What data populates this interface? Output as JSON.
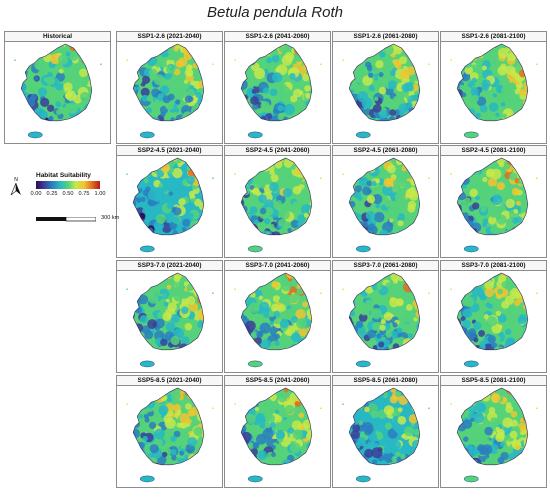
{
  "title": "Betula pendula Roth",
  "legend": {
    "title": "Habitat Suitability",
    "ticks": [
      "0.00",
      "0.25",
      "0.50",
      "0.75",
      "1.00"
    ],
    "scalebar_label": "300 km",
    "north_label": "N",
    "colors": [
      "#2d0a4e",
      "#3b3f9a",
      "#2a7fbf",
      "#28b8c4",
      "#55d27a",
      "#c6e94a",
      "#f0c530",
      "#e36f22",
      "#b4181b"
    ]
  },
  "panels": [
    {
      "label": "Historical",
      "mean": 0.45
    },
    {
      "label": "SSP1-2.6 (2021-2040)",
      "mean": 0.46
    },
    {
      "label": "SSP1-2.6 (2041-2060)",
      "mean": 0.47
    },
    {
      "label": "SSP1-2.6 (2061-2080)",
      "mean": 0.46
    },
    {
      "label": "SSP1-2.6 (2081-2100)",
      "mean": 0.52
    },
    {
      "label": "SSP2-4.5 (2021-2040)",
      "mean": 0.44
    },
    {
      "label": "SSP2-4.5 (2041-2060)",
      "mean": 0.5
    },
    {
      "label": "SSP2-4.5 (2061-2080)",
      "mean": 0.46
    },
    {
      "label": "SSP2-4.5 (2081-2100)",
      "mean": 0.49
    },
    {
      "label": "SSP3-7.0 (2021-2040)",
      "mean": 0.45
    },
    {
      "label": "SSP3-7.0 (2041-2060)",
      "mean": 0.5
    },
    {
      "label": "SSP3-7.0 (2061-2080)",
      "mean": 0.47
    },
    {
      "label": "SSP3-7.0 (2081-2100)",
      "mean": 0.48
    },
    {
      "label": "SSP5-8.5 (2021-2040)",
      "mean": 0.46
    },
    {
      "label": "SSP5-8.5 (2041-2060)",
      "mean": 0.49
    },
    {
      "label": "SSP5-8.5 (2061-2080)",
      "mean": 0.44
    },
    {
      "label": "SSP5-8.5 (2081-2100)",
      "mean": 0.5
    }
  ]
}
